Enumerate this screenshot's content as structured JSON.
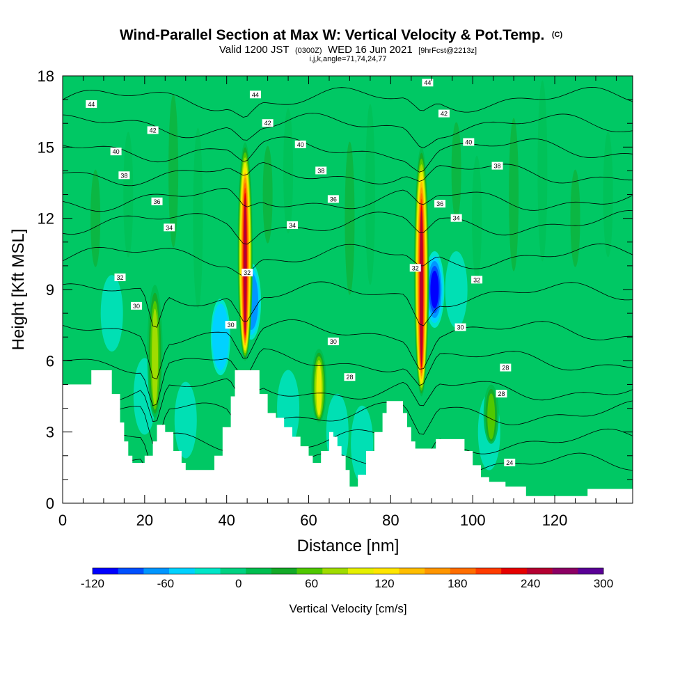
{
  "title": {
    "main": "Wind-Parallel Section at Max W: Vertical Velocity & Pot.Temp.",
    "main_suffix": "(C)",
    "valid_prefix": "Valid 1200 JST",
    "valid_zone": "(0300Z)",
    "valid_date": "WED 16 Jun 2021",
    "forecast": "[9hrFcst@2213z]",
    "indices": "i,j,k,angle=71,74,24,77"
  },
  "chart_data": {
    "type": "heatmap",
    "xlabel": "Distance [nm]",
    "ylabel": "Height [Kft MSL]",
    "xlim": [
      0,
      139
    ],
    "ylim": [
      0,
      18
    ],
    "x_ticks": [
      "0",
      "20",
      "40",
      "60",
      "80",
      "100",
      "120"
    ],
    "y_ticks": [
      "0",
      "3",
      "6",
      "9",
      "12",
      "15",
      "18"
    ],
    "colorbar": {
      "label": "Vertical Velocity [cm/s]",
      "tick_labels": [
        "-120",
        "-60",
        "0",
        "60",
        "120",
        "180",
        "240",
        "300"
      ],
      "min": -120,
      "max": 300,
      "colors": [
        "#0000ff",
        "#0050ff",
        "#0096ff",
        "#00d2ff",
        "#00e6c8",
        "#00d282",
        "#00be50",
        "#14aa28",
        "#50c800",
        "#a0dc00",
        "#e6f000",
        "#ffe600",
        "#ffbe00",
        "#ff9600",
        "#ff6e00",
        "#ff3c00",
        "#e60000",
        "#b40032",
        "#8c0064",
        "#5a0096"
      ]
    },
    "terrain_height_kft": [
      [
        0,
        5.0
      ],
      [
        5,
        5.0
      ],
      [
        7,
        5.6
      ],
      [
        10,
        5.6
      ],
      [
        12,
        4.6
      ],
      [
        14,
        3.4
      ],
      [
        15,
        2.6
      ],
      [
        16,
        2.0
      ],
      [
        17,
        1.7
      ],
      [
        20,
        2.0
      ],
      [
        22,
        2.6
      ],
      [
        23,
        3.3
      ],
      [
        25,
        3.0
      ],
      [
        27,
        2.2
      ],
      [
        29,
        1.7
      ],
      [
        30,
        1.4
      ],
      [
        35,
        1.4
      ],
      [
        37,
        2.0
      ],
      [
        39,
        3.2
      ],
      [
        41,
        4.5
      ],
      [
        42,
        5.6
      ],
      [
        46,
        5.6
      ],
      [
        48,
        4.6
      ],
      [
        50,
        3.8
      ],
      [
        52,
        3.6
      ],
      [
        54,
        3.2
      ],
      [
        56,
        2.8
      ],
      [
        58,
        2.4
      ],
      [
        60,
        2.0
      ],
      [
        61,
        1.7
      ],
      [
        63,
        2.2
      ],
      [
        65,
        3.0
      ],
      [
        66,
        2.8
      ],
      [
        67,
        2.4
      ],
      [
        68,
        2.0
      ],
      [
        69,
        1.4
      ],
      [
        70,
        0.7
      ],
      [
        72,
        1.2
      ],
      [
        74,
        2.2
      ],
      [
        76,
        3.0
      ],
      [
        78,
        3.8
      ],
      [
        79,
        4.3
      ],
      [
        82,
        4.3
      ],
      [
        83,
        3.8
      ],
      [
        84,
        3.2
      ],
      [
        85,
        2.6
      ],
      [
        86,
        2.3
      ],
      [
        90,
        2.3
      ],
      [
        91,
        2.7
      ],
      [
        96,
        2.7
      ],
      [
        98,
        2.2
      ],
      [
        100,
        1.6
      ],
      [
        102,
        1.1
      ],
      [
        104,
        0.9
      ],
      [
        108,
        0.7
      ],
      [
        112,
        0.7
      ],
      [
        113,
        0.3
      ],
      [
        120,
        0.3
      ],
      [
        125,
        0.3
      ],
      [
        128,
        0.6
      ],
      [
        139,
        0.6
      ]
    ],
    "updrafts": [
      {
        "x": 22.5,
        "y_top": 9.2,
        "y_bottom": 3.6,
        "peak_w": 90
      },
      {
        "x": 44.5,
        "y_top": 15.2,
        "y_bottom": 6.0,
        "peak_w": 250
      },
      {
        "x": 62.5,
        "y_top": 6.5,
        "y_bottom": 3.4,
        "peak_w": 100
      },
      {
        "x": 87.5,
        "y_top": 15.0,
        "y_bottom": 4.5,
        "peak_w": 240
      },
      {
        "x": 104.5,
        "y_top": 5.0,
        "y_bottom": 2.5,
        "peak_w": 60
      }
    ],
    "downdrafts": [
      {
        "x": 46,
        "y": 8.5,
        "min_w": -60
      },
      {
        "x": 90.7,
        "y": 9.0,
        "min_w": -110
      },
      {
        "x": 38.5,
        "y": 7.0,
        "min_w": -40
      }
    ],
    "theta_contour_labels": [
      {
        "text": "44",
        "x": 7,
        "y": 16.8
      },
      {
        "text": "44",
        "x": 47,
        "y": 17.2
      },
      {
        "text": "44",
        "x": 89,
        "y": 17.7
      },
      {
        "text": "42",
        "x": 22,
        "y": 15.7
      },
      {
        "text": "42",
        "x": 50,
        "y": 16.0
      },
      {
        "text": "42",
        "x": 93,
        "y": 16.4
      },
      {
        "text": "40",
        "x": 13,
        "y": 14.8
      },
      {
        "text": "40",
        "x": 58,
        "y": 15.1
      },
      {
        "text": "40",
        "x": 99,
        "y": 15.2
      },
      {
        "text": "38",
        "x": 15,
        "y": 13.8
      },
      {
        "text": "38",
        "x": 63,
        "y": 14.0
      },
      {
        "text": "38",
        "x": 106,
        "y": 14.2
      },
      {
        "text": "36",
        "x": 23,
        "y": 12.7
      },
      {
        "text": "36",
        "x": 66,
        "y": 12.8
      },
      {
        "text": "36",
        "x": 92,
        "y": 12.6
      },
      {
        "text": "34",
        "x": 26,
        "y": 11.6
      },
      {
        "text": "34",
        "x": 56,
        "y": 11.7
      },
      {
        "text": "34",
        "x": 96,
        "y": 12.0
      },
      {
        "text": "32",
        "x": 14,
        "y": 9.5
      },
      {
        "text": "32",
        "x": 45,
        "y": 9.7
      },
      {
        "text": "32",
        "x": 86,
        "y": 9.9
      },
      {
        "text": "32",
        "x": 101,
        "y": 9.4
      },
      {
        "text": "30",
        "x": 18,
        "y": 8.3
      },
      {
        "text": "30",
        "x": 41,
        "y": 7.5
      },
      {
        "text": "30",
        "x": 66,
        "y": 6.8
      },
      {
        "text": "30",
        "x": 97,
        "y": 7.4
      },
      {
        "text": "28",
        "x": 70,
        "y": 5.3
      },
      {
        "text": "28",
        "x": 108,
        "y": 5.7
      },
      {
        "text": "28",
        "x": 107,
        "y": 4.6
      },
      {
        "text": "24",
        "x": 109,
        "y": 1.7
      }
    ]
  }
}
